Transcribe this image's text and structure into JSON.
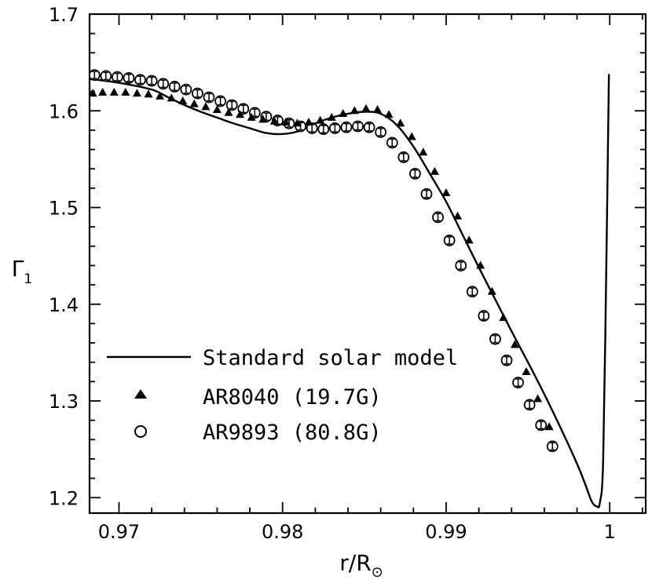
{
  "chart_data": {
    "type": "line",
    "xlabel": "r/R",
    "xlabel_symbol": "⊙",
    "ylabel": "Γ",
    "ylabel_subscript": "1",
    "xlim": [
      0.9682,
      1.0022
    ],
    "ylim": [
      1.184,
      1.7
    ],
    "xticks": [
      0.97,
      0.98,
      0.99,
      1.0
    ],
    "xtick_labels": [
      "0.97",
      "0.98",
      "0.99",
      "1"
    ],
    "yticks": [
      1.2,
      1.3,
      1.4,
      1.5,
      1.6,
      1.7
    ],
    "ytick_labels": [
      "1.2",
      "1.3",
      "1.4",
      "1.5",
      "1.6",
      "1.7"
    ],
    "legend_position": "lower-left",
    "series": [
      {
        "name": "Standard solar model",
        "marker": "line",
        "x": [
          0.9682,
          0.97,
          0.972,
          0.973,
          0.974,
          0.975,
          0.976,
          0.977,
          0.978,
          0.979,
          0.98,
          0.981,
          0.982,
          0.983,
          0.984,
          0.985,
          0.986,
          0.987,
          0.988,
          0.989,
          0.99,
          0.991,
          0.992,
          0.993,
          0.994,
          0.995,
          0.996,
          0.997,
          0.998,
          0.9985,
          0.9989,
          0.9992,
          0.9994,
          0.9996,
          0.9998,
          0.99995
        ],
        "y": [
          1.633,
          1.629,
          1.622,
          1.614,
          1.606,
          1.599,
          1.593,
          1.587,
          1.582,
          1.577,
          1.576,
          1.579,
          1.587,
          1.593,
          1.597,
          1.599,
          1.597,
          1.585,
          1.563,
          1.535,
          1.506,
          1.472,
          1.438,
          1.405,
          1.372,
          1.34,
          1.307,
          1.272,
          1.235,
          1.214,
          1.196,
          1.191,
          1.195,
          1.24,
          1.45,
          1.638
        ]
      },
      {
        "name": "AR8040 (19.7G)",
        "marker": "filled-triangle",
        "x": [
          0.9684,
          0.969,
          0.9697,
          0.9704,
          0.9711,
          0.9718,
          0.9725,
          0.9732,
          0.9739,
          0.9746,
          0.9753,
          0.976,
          0.9767,
          0.9774,
          0.9781,
          0.9788,
          0.9795,
          0.9802,
          0.9809,
          0.9816,
          0.9823,
          0.983,
          0.9837,
          0.9844,
          0.9851,
          0.9858,
          0.9865,
          0.9872,
          0.9879,
          0.9886,
          0.9893,
          0.99,
          0.9907,
          0.9914,
          0.9921,
          0.9928,
          0.9935,
          0.9942,
          0.9949,
          0.9956,
          0.9963
        ],
        "y": [
          1.618,
          1.619,
          1.619,
          1.619,
          1.618,
          1.617,
          1.615,
          1.613,
          1.61,
          1.607,
          1.604,
          1.601,
          1.598,
          1.596,
          1.593,
          1.591,
          1.589,
          1.588,
          1.587,
          1.588,
          1.59,
          1.593,
          1.597,
          1.6,
          1.602,
          1.601,
          1.596,
          1.587,
          1.573,
          1.557,
          1.537,
          1.515,
          1.491,
          1.466,
          1.44,
          1.413,
          1.386,
          1.358,
          1.33,
          1.302,
          1.273
        ]
      },
      {
        "name": "AR9893 (80.8G)",
        "marker": "open-circle-errorbar",
        "x": [
          0.9685,
          0.9692,
          0.9699,
          0.9706,
          0.9713,
          0.972,
          0.9727,
          0.9734,
          0.9741,
          0.9748,
          0.9755,
          0.9762,
          0.9769,
          0.9776,
          0.9783,
          0.979,
          0.9797,
          0.9804,
          0.9811,
          0.9818,
          0.9825,
          0.9832,
          0.9839,
          0.9846,
          0.9853,
          0.986,
          0.9867,
          0.9874,
          0.9881,
          0.9888,
          0.9895,
          0.9902,
          0.9909,
          0.9916,
          0.9923,
          0.993,
          0.9937,
          0.9944,
          0.9951,
          0.9958,
          0.9965
        ],
        "y": [
          1.637,
          1.636,
          1.635,
          1.634,
          1.632,
          1.631,
          1.628,
          1.625,
          1.622,
          1.618,
          1.614,
          1.61,
          1.606,
          1.602,
          1.598,
          1.594,
          1.59,
          1.587,
          1.584,
          1.582,
          1.581,
          1.582,
          1.583,
          1.584,
          1.583,
          1.578,
          1.567,
          1.552,
          1.535,
          1.514,
          1.49,
          1.466,
          1.44,
          1.413,
          1.388,
          1.364,
          1.342,
          1.319,
          1.296,
          1.275,
          1.253
        ]
      }
    ]
  }
}
